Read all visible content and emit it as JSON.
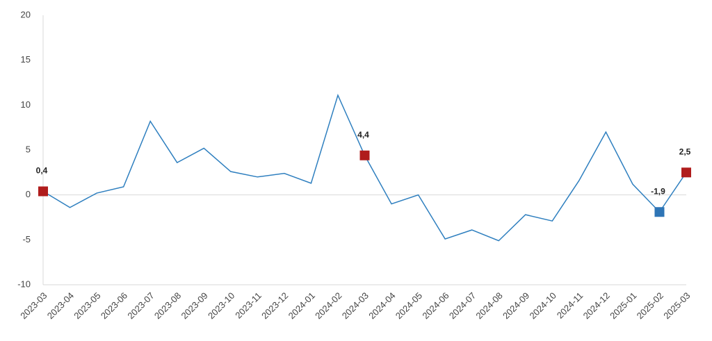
{
  "chart_data": {
    "type": "line",
    "categories": [
      "2023-03",
      "2023-04",
      "2023-05",
      "2023-06",
      "2023-07",
      "2023-08",
      "2023-09",
      "2023-10",
      "2023-11",
      "2023-12",
      "2024-01",
      "2024-02",
      "2024-03",
      "2024-04",
      "2024-05",
      "2024-06",
      "2024-07",
      "2024-08",
      "2024-09",
      "2024-10",
      "2024-11",
      "2024-12",
      "2025-01",
      "2025-02",
      "2025-03"
    ],
    "values": [
      0.4,
      -1.4,
      0.2,
      0.9,
      8.2,
      3.6,
      5.2,
      2.6,
      2.0,
      2.4,
      1.3,
      11.1,
      4.4,
      -1.0,
      0.0,
      -4.9,
      -3.9,
      -5.1,
      -2.2,
      -2.9,
      1.6,
      7.0,
      1.2,
      -1.9,
      2.5
    ],
    "value_labels": [
      "0,4",
      null,
      null,
      null,
      null,
      null,
      null,
      null,
      null,
      null,
      null,
      null,
      "4,4",
      null,
      null,
      null,
      null,
      null,
      null,
      null,
      null,
      null,
      null,
      "-1,9",
      "2,5"
    ],
    "marker_colors": [
      "#b01c1c",
      null,
      null,
      null,
      null,
      null,
      null,
      null,
      null,
      null,
      null,
      null,
      "#b01c1c",
      null,
      null,
      null,
      null,
      null,
      null,
      null,
      null,
      null,
      null,
      "#2e75b6",
      "#b01c1c"
    ],
    "color": "#2e7fbf",
    "ylim": [
      -10,
      20
    ],
    "yticks": [
      -10,
      -5,
      0,
      5,
      10,
      15,
      20
    ]
  }
}
